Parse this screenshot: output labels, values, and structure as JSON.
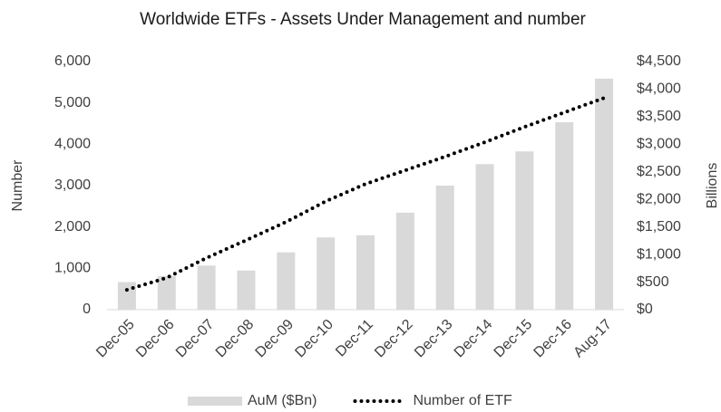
{
  "chart_data": {
    "type": "bar_line",
    "title": "Worldwide ETFs - Assets Under Management and number",
    "y_label": "Number",
    "y2_label": "Billions",
    "categories": [
      "Dec-05",
      "Dec-06",
      "Dec-07",
      "Dec-08",
      "Dec-09",
      "Dec-10",
      "Dec-11",
      "Dec-12",
      "Dec-13",
      "Dec-14",
      "Dec-15",
      "Dec-16",
      "Aug-17"
    ],
    "series": [
      {
        "name": "AuM ($Bn)",
        "kind": "bar",
        "axis": "y2",
        "color": "#d9d9d9",
        "values": [
          500,
          610,
          800,
          710,
          1040,
          1310,
          1350,
          1760,
          2250,
          2640,
          2870,
          3400,
          4190
        ]
      },
      {
        "name": "Number of ETF",
        "kind": "line",
        "style": "dotted",
        "color": "#000000",
        "values": [
          480,
          770,
          1250,
          1680,
          2120,
          2620,
          3040,
          3370,
          3700,
          4050,
          4420,
          4770,
          5120
        ]
      }
    ],
    "ylim": [
      0,
      6000
    ],
    "yticks": [
      0,
      {
        "value": 1000,
        "label": "1,000"
      },
      {
        "value": 2000,
        "label": "2,000"
      },
      {
        "value": 3000,
        "label": "3,000"
      },
      {
        "value": 4000,
        "label": "4,000"
      },
      {
        "value": 5000,
        "label": "5,000"
      },
      {
        "value": 6000,
        "label": "6,000"
      }
    ],
    "y2lim": [
      0,
      4500
    ],
    "y2ticks": [
      {
        "value": 0,
        "label": "$0"
      },
      {
        "value": 500,
        "label": "$500"
      },
      {
        "value": 1000,
        "label": "$1,000"
      },
      {
        "value": 1500,
        "label": "$1,500"
      },
      {
        "value": 2000,
        "label": "$2,000"
      },
      {
        "value": 2500,
        "label": "$2,500"
      },
      {
        "value": 3000,
        "label": "$3,000"
      },
      {
        "value": 3500,
        "label": "$3,500"
      },
      {
        "value": 4000,
        "label": "$4,000"
      },
      {
        "value": 4500,
        "label": "$4,500"
      }
    ],
    "legend": "bottom",
    "grid": false
  }
}
